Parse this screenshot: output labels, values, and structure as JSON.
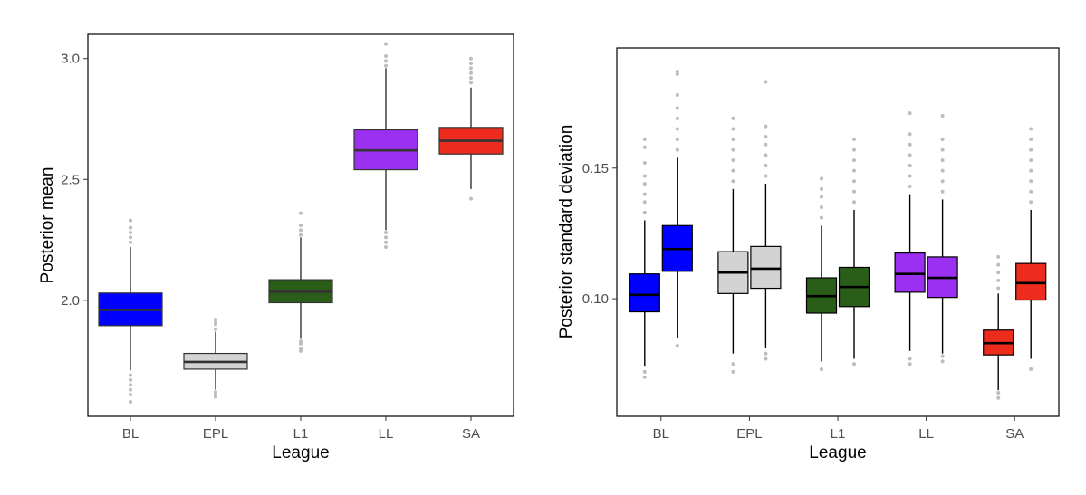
{
  "chart_data": [
    {
      "type": "boxplot",
      "xlabel": "League",
      "ylabel": "Posterior mean",
      "categories": [
        "BL",
        "EPL",
        "L1",
        "LL",
        "SA"
      ],
      "ylim": [
        1.52,
        3.1
      ],
      "yticks": [
        2.0,
        2.5,
        3.0
      ],
      "ytick_labels": [
        "2.0",
        "2.5",
        "3.0"
      ],
      "grid": false,
      "series": [
        {
          "boxes": [
            {
              "category": "BL",
              "color": "#0000ff",
              "q1": 1.895,
              "median": 1.96,
              "q3": 2.03,
              "whisker_low": 1.71,
              "whisker_high": 2.22,
              "outliers_low": [
                1.58,
                1.61,
                1.63,
                1.65,
                1.67,
                1.69
              ],
              "outliers_high": [
                2.24,
                2.26,
                2.28,
                2.3,
                2.33
              ]
            },
            {
              "category": "EPL",
              "color": "#d3d3d3",
              "q1": 1.715,
              "median": 1.745,
              "q3": 1.78,
              "whisker_low": 1.63,
              "whisker_high": 1.87,
              "outliers_low": [
                1.6,
                1.61,
                1.62
              ],
              "outliers_high": [
                1.88,
                1.9,
                1.91,
                1.92
              ]
            },
            {
              "category": "L1",
              "color": "#2a5e18",
              "q1": 1.99,
              "median": 2.035,
              "q3": 2.085,
              "whisker_low": 1.84,
              "whisker_high": 2.26,
              "outliers_low": [
                1.79,
                1.8,
                1.82,
                1.83
              ],
              "outliers_high": [
                2.27,
                2.29,
                2.31,
                2.36
              ]
            },
            {
              "category": "LL",
              "color": "#9b30f0",
              "q1": 2.54,
              "median": 2.62,
              "q3": 2.705,
              "whisker_low": 2.29,
              "whisker_high": 2.96,
              "outliers_low": [
                2.22,
                2.24,
                2.26,
                2.28
              ],
              "outliers_high": [
                2.97,
                2.99,
                3.01,
                3.06
              ]
            },
            {
              "category": "SA",
              "color": "#ee2c1e",
              "q1": 2.605,
              "median": 2.66,
              "q3": 2.715,
              "whisker_low": 2.46,
              "whisker_high": 2.88,
              "outliers_low": [
                2.42
              ],
              "outliers_high": [
                2.9,
                2.92,
                2.94,
                2.96,
                2.98,
                3.0
              ]
            }
          ]
        }
      ]
    },
    {
      "type": "boxplot",
      "xlabel": "League",
      "ylabel": "Posterior standard deviation",
      "categories": [
        "BL",
        "EPL",
        "L1",
        "LL",
        "SA"
      ],
      "ylim": [
        0.055,
        0.196
      ],
      "yticks": [
        0.1,
        0.15
      ],
      "ytick_labels": [
        "0.10",
        "0.15"
      ],
      "grid": false,
      "series": [
        {
          "boxes": [
            {
              "category": "BL",
              "color": "#0000ff",
              "q1": 0.095,
              "median": 0.1015,
              "q3": 0.1095,
              "whisker_low": 0.074,
              "whisker_high": 0.13,
              "outliers_low": [
                0.07,
                0.072
              ],
              "outliers_high": [
                0.133,
                0.137,
                0.14,
                0.144,
                0.147,
                0.152,
                0.158,
                0.161
              ]
            },
            {
              "category": "BL",
              "color": "#0000ff",
              "q1": 0.1105,
              "median": 0.119,
              "q3": 0.128,
              "whisker_low": 0.085,
              "whisker_high": 0.154,
              "outliers_low": [
                0.082
              ],
              "outliers_high": [
                0.157,
                0.161,
                0.165,
                0.169,
                0.173,
                0.178,
                0.186,
                0.187
              ]
            },
            {
              "category": "EPL",
              "color": "#d3d3d3",
              "q1": 0.102,
              "median": 0.11,
              "q3": 0.118,
              "whisker_low": 0.079,
              "whisker_high": 0.142,
              "outliers_low": [
                0.072,
                0.075
              ],
              "outliers_high": [
                0.145,
                0.149,
                0.153,
                0.157,
                0.161,
                0.165,
                0.169
              ]
            },
            {
              "category": "EPL",
              "color": "#d3d3d3",
              "q1": 0.104,
              "median": 0.1115,
              "q3": 0.12,
              "whisker_low": 0.081,
              "whisker_high": 0.144,
              "outliers_low": [
                0.077,
                0.079
              ],
              "outliers_high": [
                0.147,
                0.151,
                0.155,
                0.159,
                0.162,
                0.166,
                0.183
              ]
            },
            {
              "category": "L1",
              "color": "#2a5e18",
              "q1": 0.0945,
              "median": 0.101,
              "q3": 0.108,
              "whisker_low": 0.076,
              "whisker_high": 0.128,
              "outliers_low": [
                0.073
              ],
              "outliers_high": [
                0.131,
                0.135,
                0.139,
                0.142,
                0.146
              ]
            },
            {
              "category": "L1",
              "color": "#2a5e18",
              "q1": 0.097,
              "median": 0.1045,
              "q3": 0.112,
              "whisker_low": 0.077,
              "whisker_high": 0.134,
              "outliers_low": [
                0.075
              ],
              "outliers_high": [
                0.137,
                0.141,
                0.145,
                0.149,
                0.153,
                0.157,
                0.161
              ]
            },
            {
              "category": "LL",
              "color": "#9b30f0",
              "q1": 0.1025,
              "median": 0.1095,
              "q3": 0.1175,
              "whisker_low": 0.08,
              "whisker_high": 0.14,
              "outliers_low": [
                0.075,
                0.077
              ],
              "outliers_high": [
                0.143,
                0.147,
                0.151,
                0.155,
                0.159,
                0.163,
                0.171
              ]
            },
            {
              "category": "LL",
              "color": "#9b30f0",
              "q1": 0.1005,
              "median": 0.108,
              "q3": 0.116,
              "whisker_low": 0.079,
              "whisker_high": 0.138,
              "outliers_low": [
                0.076,
                0.078
              ],
              "outliers_high": [
                0.141,
                0.145,
                0.149,
                0.153,
                0.157,
                0.161,
                0.17
              ]
            },
            {
              "category": "SA",
              "color": "#ee2c1e",
              "q1": 0.0785,
              "median": 0.083,
              "q3": 0.088,
              "whisker_low": 0.065,
              "whisker_high": 0.102,
              "outliers_low": [
                0.062,
                0.064
              ],
              "outliers_high": [
                0.104,
                0.107,
                0.11,
                0.113,
                0.116
              ]
            },
            {
              "category": "SA",
              "color": "#ee2c1e",
              "q1": 0.0995,
              "median": 0.106,
              "q3": 0.1135,
              "whisker_low": 0.077,
              "whisker_high": 0.134,
              "outliers_low": [
                0.073
              ],
              "outliers_high": [
                0.137,
                0.141,
                0.145,
                0.149,
                0.153,
                0.157,
                0.161,
                0.165
              ]
            }
          ]
        }
      ]
    }
  ]
}
